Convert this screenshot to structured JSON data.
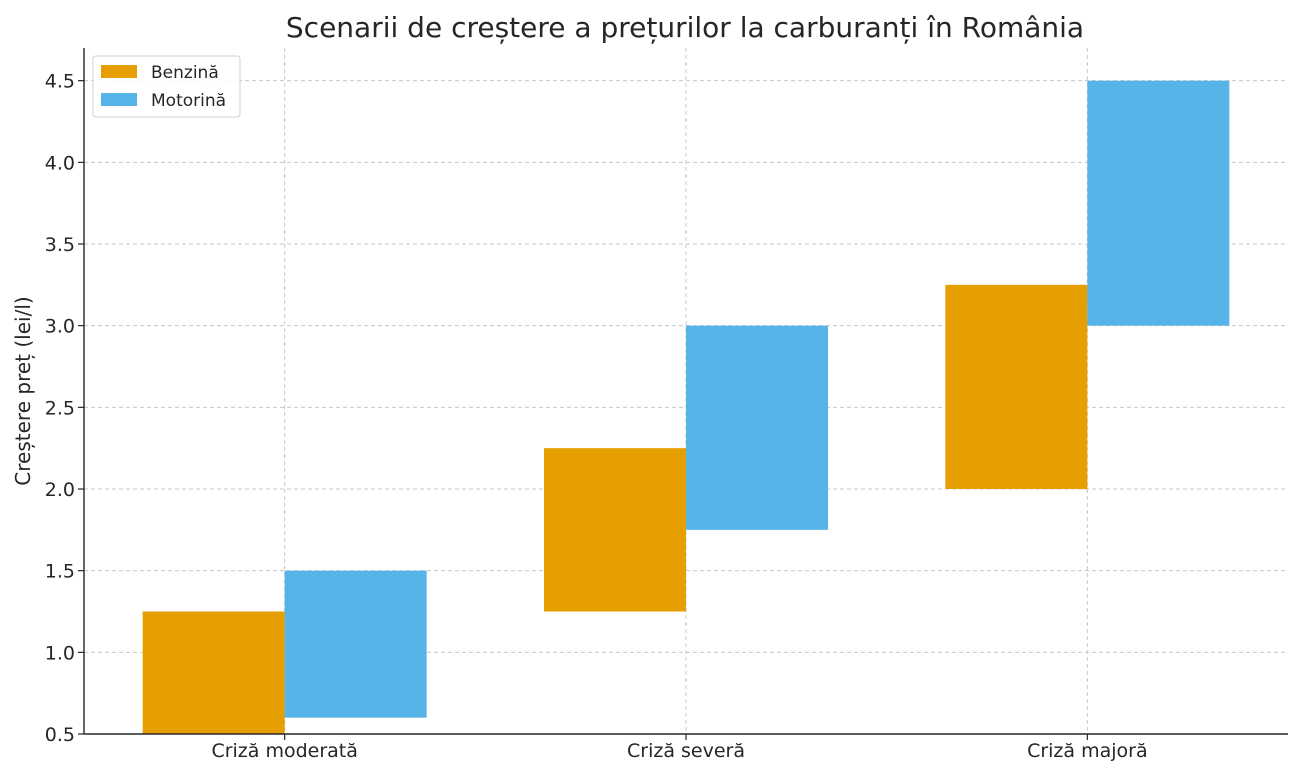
{
  "chart_data": {
    "type": "bar",
    "subtype": "floating-range",
    "title": "Scenarii de creștere a prețurilor la carburanți în România",
    "xlabel": "",
    "ylabel": "Creștere preț (lei/l)",
    "categories": [
      "Criză moderată",
      "Criză severă",
      "Criză majoră"
    ],
    "ylim": [
      0.5,
      4.7
    ],
    "yticks": [
      0.5,
      1.0,
      1.5,
      2.0,
      2.5,
      3.0,
      3.5,
      4.0,
      4.5
    ],
    "grid": true,
    "legend_position": "top-left",
    "series": [
      {
        "name": "Benzină",
        "color": "#E69F00",
        "ranges": [
          [
            0.5,
            1.25
          ],
          [
            1.25,
            2.25
          ],
          [
            2.0,
            3.25
          ]
        ]
      },
      {
        "name": "Motorină",
        "color": "#56B4E9",
        "ranges": [
          [
            0.6,
            1.5
          ],
          [
            1.75,
            3.0
          ],
          [
            3.0,
            4.5
          ]
        ]
      }
    ]
  }
}
